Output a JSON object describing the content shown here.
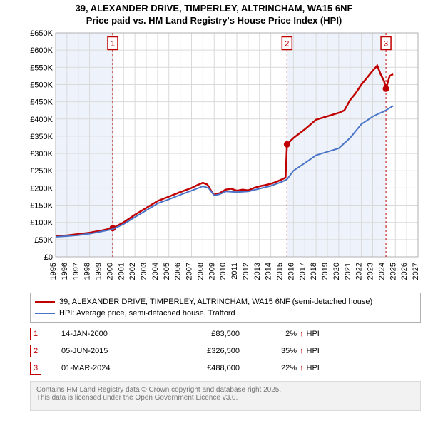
{
  "title": {
    "line1": "39, ALEXANDER DRIVE, TIMPERLEY, ALTRINCHAM, WA15 6NF",
    "line2": "Price paid vs. HM Land Registry's House Price Index (HPI)"
  },
  "chart": {
    "type": "line",
    "background_color": "#ffffff",
    "grid_color": "#d9d9d9",
    "axis_color": "#b0b0b0",
    "shade_color": "#eef3fb",
    "x": {
      "min": 1995,
      "max": 2027,
      "ticks": [
        1995,
        1996,
        1997,
        1998,
        1999,
        2000,
        2001,
        2002,
        2003,
        2004,
        2005,
        2006,
        2007,
        2008,
        2009,
        2010,
        2011,
        2012,
        2013,
        2014,
        2015,
        2016,
        2017,
        2018,
        2019,
        2020,
        2021,
        2022,
        2023,
        2024,
        2025,
        2026,
        2027
      ],
      "label_fontsize": 11
    },
    "y": {
      "min": 0,
      "max": 650000,
      "ticks": [
        0,
        50000,
        100000,
        150000,
        200000,
        250000,
        300000,
        350000,
        400000,
        450000,
        500000,
        550000,
        600000,
        650000
      ],
      "tick_labels": [
        "£0",
        "£50K",
        "£100K",
        "£150K",
        "£200K",
        "£250K",
        "£300K",
        "£350K",
        "£400K",
        "£450K",
        "£500K",
        "£550K",
        "£600K",
        "£650K"
      ],
      "label_fontsize": 11
    },
    "shaded_ranges": [
      {
        "from": 1995,
        "to": 2000.04
      },
      {
        "from": 2015.43,
        "to": 2024.17
      }
    ],
    "ref_lines": [
      {
        "x": 2000.04
      },
      {
        "x": 2015.43
      },
      {
        "x": 2024.17
      }
    ],
    "markers": [
      {
        "num": "1",
        "x": 2000.04,
        "y_box": 620000
      },
      {
        "num": "2",
        "x": 2015.43,
        "y_box": 620000
      },
      {
        "num": "3",
        "x": 2024.17,
        "y_box": 620000
      }
    ],
    "series": [
      {
        "name": "price_paid",
        "color": "#c00000",
        "width": 2.5,
        "points": [
          [
            1995,
            60000
          ],
          [
            1996,
            62000
          ],
          [
            1997,
            66000
          ],
          [
            1998,
            70000
          ],
          [
            1999,
            76000
          ],
          [
            2000.04,
            83500
          ],
          [
            2001,
            100000
          ],
          [
            2002,
            122000
          ],
          [
            2003,
            142000
          ],
          [
            2004,
            162000
          ],
          [
            2005,
            175000
          ],
          [
            2006,
            188000
          ],
          [
            2007,
            200000
          ],
          [
            2007.5,
            208000
          ],
          [
            2008,
            215000
          ],
          [
            2008.4,
            210000
          ],
          [
            2008.8,
            188000
          ],
          [
            2009,
            180000
          ],
          [
            2009.5,
            185000
          ],
          [
            2010,
            195000
          ],
          [
            2010.5,
            198000
          ],
          [
            2011,
            192000
          ],
          [
            2011.5,
            195000
          ],
          [
            2012,
            193000
          ],
          [
            2012.5,
            200000
          ],
          [
            2013,
            205000
          ],
          [
            2013.5,
            208000
          ],
          [
            2014,
            212000
          ],
          [
            2014.5,
            218000
          ],
          [
            2015,
            225000
          ],
          [
            2015.3,
            230000
          ],
          [
            2015.43,
            326500
          ],
          [
            2016,
            345000
          ],
          [
            2017,
            370000
          ],
          [
            2018,
            398000
          ],
          [
            2019,
            408000
          ],
          [
            2020,
            418000
          ],
          [
            2020.5,
            425000
          ],
          [
            2021,
            455000
          ],
          [
            2021.5,
            475000
          ],
          [
            2022,
            500000
          ],
          [
            2022.5,
            520000
          ],
          [
            2023,
            540000
          ],
          [
            2023.4,
            555000
          ],
          [
            2023.7,
            530000
          ],
          [
            2024,
            510000
          ],
          [
            2024.17,
            488000
          ],
          [
            2024.5,
            525000
          ],
          [
            2024.8,
            530000
          ]
        ],
        "sale_dots": [
          {
            "x": 2000.04,
            "y": 83500
          },
          {
            "x": 2015.43,
            "y": 326500
          },
          {
            "x": 2024.17,
            "y": 488000
          }
        ]
      },
      {
        "name": "hpi",
        "color": "#4a74c8",
        "width": 2,
        "points": [
          [
            1995,
            58000
          ],
          [
            1996,
            60000
          ],
          [
            1997,
            63000
          ],
          [
            1998,
            67000
          ],
          [
            1999,
            73000
          ],
          [
            2000,
            80000
          ],
          [
            2001,
            95000
          ],
          [
            2002,
            115000
          ],
          [
            2003,
            135000
          ],
          [
            2004,
            155000
          ],
          [
            2005,
            167000
          ],
          [
            2006,
            180000
          ],
          [
            2007,
            192000
          ],
          [
            2008,
            205000
          ],
          [
            2008.5,
            200000
          ],
          [
            2009,
            178000
          ],
          [
            2009.5,
            182000
          ],
          [
            2010,
            190000
          ],
          [
            2011,
            188000
          ],
          [
            2012,
            190000
          ],
          [
            2013,
            198000
          ],
          [
            2014,
            206000
          ],
          [
            2015,
            218000
          ],
          [
            2015.43,
            225000
          ],
          [
            2016,
            250000
          ],
          [
            2017,
            272000
          ],
          [
            2018,
            295000
          ],
          [
            2019,
            305000
          ],
          [
            2020,
            315000
          ],
          [
            2021,
            345000
          ],
          [
            2022,
            385000
          ],
          [
            2023,
            407000
          ],
          [
            2023.5,
            415000
          ],
          [
            2024,
            422000
          ],
          [
            2024.5,
            432000
          ],
          [
            2024.8,
            438000
          ]
        ]
      }
    ]
  },
  "legend": {
    "items": [
      {
        "color": "#c00000",
        "thick": true,
        "label": "39, ALEXANDER DRIVE, TIMPERLEY, ALTRINCHAM, WA15 6NF (semi-detached house)"
      },
      {
        "color": "#4a74c8",
        "thick": false,
        "label": "HPI: Average price, semi-detached house, Trafford"
      }
    ]
  },
  "events": [
    {
      "num": "1",
      "date": "14-JAN-2000",
      "price": "£83,500",
      "pct": "2%",
      "arrow": "↑",
      "suffix": "HPI"
    },
    {
      "num": "2",
      "date": "05-JUN-2015",
      "price": "£326,500",
      "pct": "35%",
      "arrow": "↑",
      "suffix": "HPI"
    },
    {
      "num": "3",
      "date": "01-MAR-2024",
      "price": "£488,000",
      "pct": "22%",
      "arrow": "↑",
      "suffix": "HPI"
    }
  ],
  "footer": {
    "line1": "Contains HM Land Registry data © Crown copyright and database right 2025.",
    "line2": "This data is licensed under the Open Government Licence v3.0."
  }
}
